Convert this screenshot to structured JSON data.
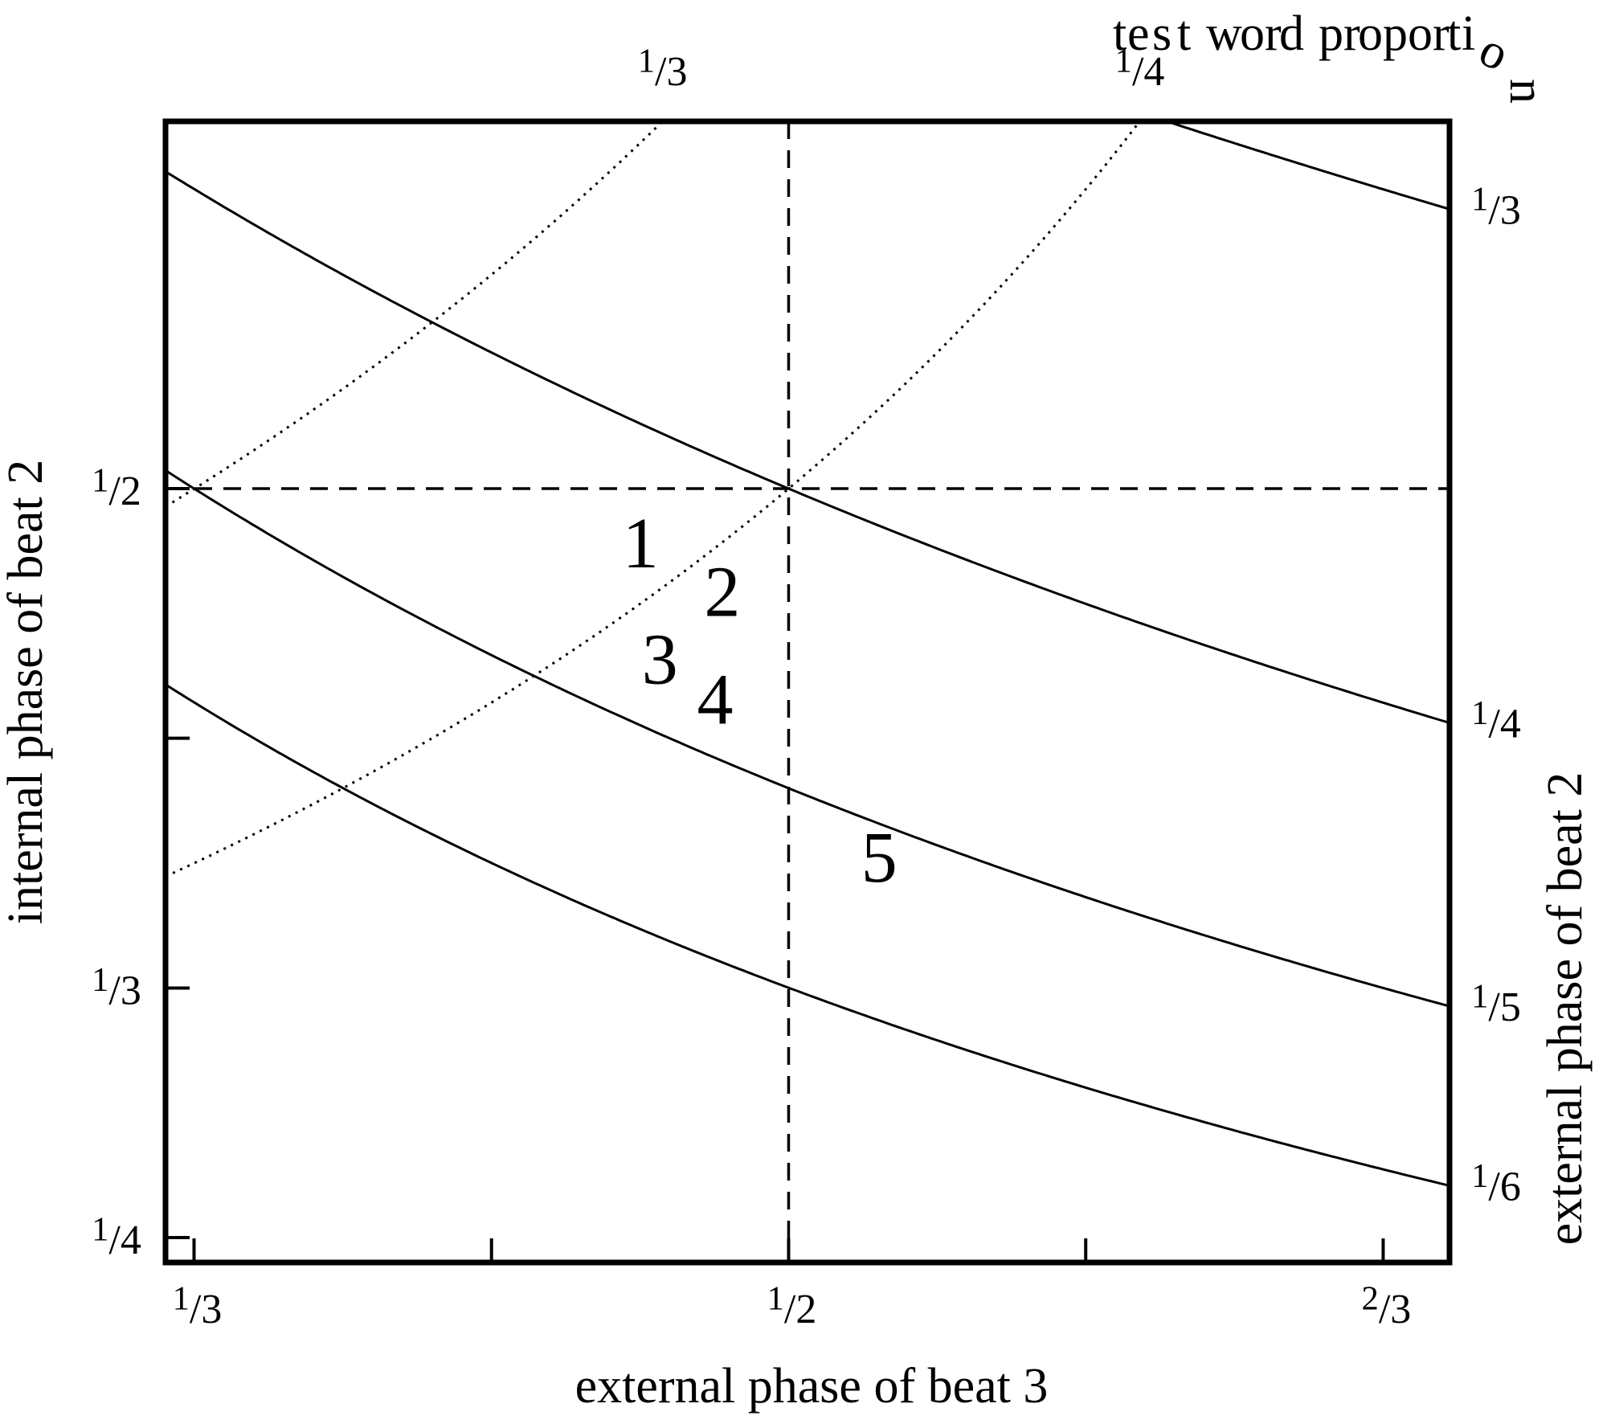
{
  "chart_data": {
    "type": "line",
    "title": "",
    "xlabel": "external phase of beat 3",
    "ylabel": "internal phase of beat 2",
    "right_axis_label": "external phase of beat 2",
    "top_axis_label": "test word proportion",
    "xlim": [
      0.3253,
      0.6853
    ],
    "ylim": [
      0.2417,
      0.6226
    ],
    "x_ticks": [
      0.3333,
      0.4167,
      0.5,
      0.5833,
      0.6667
    ],
    "x_tick_labels": [
      {
        "value": 0.3333,
        "num": "1",
        "den": "3"
      },
      {
        "value": 0.5,
        "num": "1",
        "den": "2"
      },
      {
        "value": 0.6667,
        "num": "2",
        "den": "3"
      }
    ],
    "y_ticks": [
      0.25,
      0.3333,
      0.4167,
      0.5
    ],
    "y_tick_labels": [
      {
        "value": 0.25,
        "num": "1",
        "den": "4"
      },
      {
        "value": 0.3333,
        "num": "1",
        "den": "3"
      },
      {
        "value": 0.5,
        "num": "1",
        "den": "2"
      }
    ],
    "contours_external_phase_beat2": [
      {
        "value": 0.3333,
        "num": "1",
        "den": "3"
      },
      {
        "value": 0.25,
        "num": "1",
        "den": "4"
      },
      {
        "value": 0.2,
        "num": "1",
        "den": "5"
      },
      {
        "value": 0.1667,
        "num": "1",
        "den": "6"
      }
    ],
    "contours_test_word_proportion": [
      {
        "value": 0.25,
        "num": "1",
        "den": "4"
      },
      {
        "value": 0.3333,
        "num": "1",
        "den": "3"
      }
    ],
    "reference_lines": {
      "x": 0.5,
      "y": 0.5
    },
    "region_labels": [
      {
        "text": "1",
        "x": 0.4585,
        "y": 0.4737
      },
      {
        "text": "2",
        "x": 0.4814,
        "y": 0.4575
      },
      {
        "text": "3",
        "x": 0.4639,
        "y": 0.4349
      },
      {
        "text": "4",
        "x": 0.4794,
        "y": 0.4215
      },
      {
        "text": "5",
        "x": 0.5254,
        "y": 0.3689
      }
    ],
    "grid": false,
    "legend": "none"
  }
}
